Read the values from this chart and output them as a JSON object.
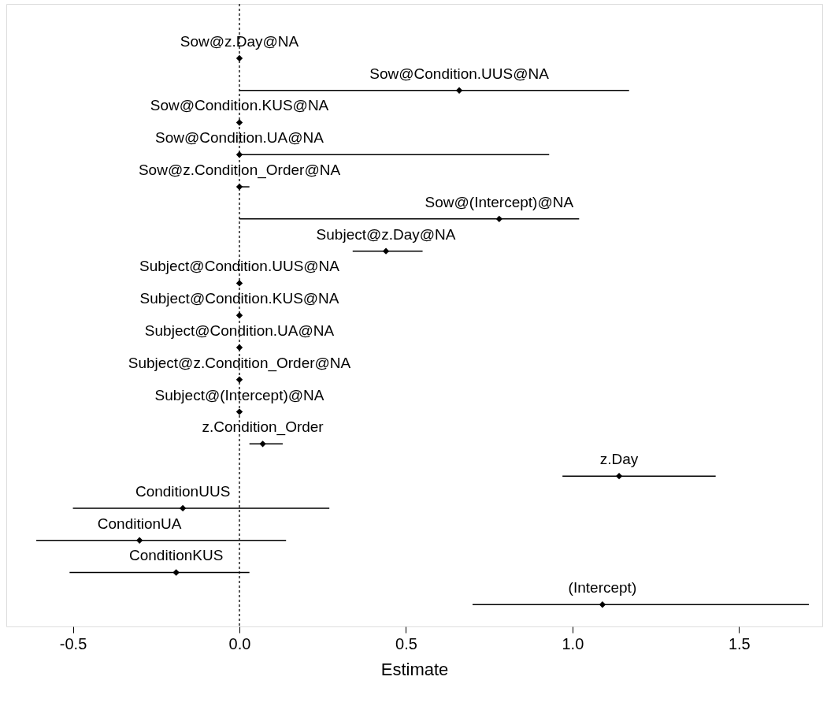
{
  "chart_data": {
    "type": "scatter",
    "orientation": "horizontal",
    "xlabel": "Estimate",
    "marker": "diamond",
    "grid": false,
    "tick_labels": "x",
    "categories": [
      "Sow@z.Day@NA",
      "Sow@Condition.UUS@NA",
      "Sow@Condition.KUS@NA",
      "Sow@Condition.UA@NA",
      "Sow@z.Condition_Order@NA",
      "Sow@(Intercept)@NA",
      "Subject@z.Day@NA",
      "Subject@Condition.UUS@NA",
      "Subject@Condition.KUS@NA",
      "Subject@Condition.UA@NA",
      "Subject@z.Condition_Order@NA",
      "Subject@(Intercept)@NA",
      "z.Condition_Order",
      "z.Day",
      "ConditionUUS",
      "ConditionUA",
      "ConditionKUS",
      "(Intercept)"
    ],
    "series": [
      {
        "color": "#000000",
        "values": [
          0.0,
          0.66,
          0.0,
          0.0,
          0.0,
          0.78,
          0.44,
          0.0,
          0.0,
          0.0,
          0.0,
          0.0,
          0.07,
          1.14,
          -0.17,
          -0.3,
          -0.19,
          1.09
        ],
        "errors": [
          null,
          [
            0.0,
            1.17
          ],
          null,
          [
            0.0,
            0.93
          ],
          [
            0.0,
            0.03
          ],
          [
            0.0,
            1.02
          ],
          [
            0.34,
            0.55
          ],
          null,
          null,
          null,
          null,
          null,
          [
            0.03,
            0.13
          ],
          [
            0.97,
            1.43
          ],
          [
            -0.5,
            0.27
          ],
          [
            -0.61,
            0.14
          ],
          [
            -0.51,
            0.03
          ],
          [
            0.7,
            1.71
          ]
        ]
      }
    ],
    "xlim": [
      -0.7,
      1.75
    ],
    "xticks": [
      {
        "value": -0.5,
        "label": "-0.5"
      },
      {
        "value": 0,
        "label": "0.0"
      },
      {
        "value": 0.5,
        "label": "0.5"
      },
      {
        "value": 1,
        "label": "1.0"
      },
      {
        "value": 1.5,
        "label": "1.5"
      }
    ],
    "ref_lines": [
      {
        "axis": "x",
        "value": 0,
        "label": null,
        "color": "#000000",
        "line_style": "dotted"
      }
    ]
  }
}
